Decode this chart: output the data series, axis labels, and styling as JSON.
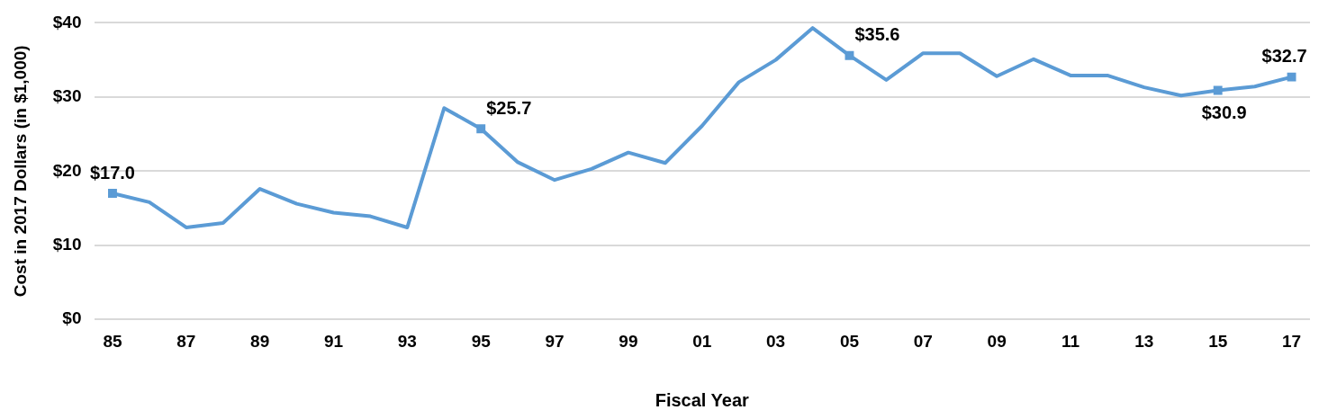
{
  "chart_data": {
    "type": "line",
    "xlabel": "Fiscal Year",
    "ylabel": "Cost in 2017 Dollars (in $1,000)",
    "categories": [
      "85",
      null,
      "87",
      null,
      "89",
      null,
      "91",
      null,
      "93",
      null,
      "95",
      null,
      "97",
      null,
      "99",
      null,
      "01",
      null,
      "03",
      null,
      "05",
      null,
      "07",
      null,
      "09",
      null,
      "11",
      null,
      "13",
      null,
      "15",
      null,
      "17"
    ],
    "series": [
      {
        "color": "#5b9bd5",
        "marker": "none",
        "values": [
          17.0,
          15.8,
          12.4,
          13.0,
          17.6,
          15.6,
          14.4,
          13.9,
          12.4,
          28.5,
          25.7,
          21.2,
          18.8,
          20.3,
          22.5,
          21.1,
          26.1,
          32.0,
          35.0,
          39.3,
          35.6,
          32.3,
          35.9,
          35.9,
          32.8,
          35.1,
          32.9,
          32.9,
          31.3,
          30.2,
          30.9,
          31.4,
          32.7
        ]
      },
      {
        "type": "scatter",
        "color": "#5b9bd5",
        "values": [
          17.0,
          null,
          null,
          null,
          null,
          null,
          null,
          null,
          null,
          null,
          25.7,
          null,
          null,
          null,
          null,
          null,
          null,
          null,
          null,
          null,
          35.6,
          null,
          null,
          null,
          null,
          null,
          null,
          null,
          null,
          null,
          30.9,
          null,
          32.7
        ],
        "value_labels": [
          "$17.0",
          null,
          null,
          null,
          null,
          null,
          null,
          null,
          null,
          null,
          "$25.7",
          null,
          null,
          null,
          null,
          null,
          null,
          null,
          null,
          null,
          "$35.6",
          null,
          null,
          null,
          null,
          null,
          null,
          null,
          null,
          null,
          "$30.9",
          null,
          "$32.7"
        ]
      }
    ],
    "ylim": [
      0,
      40
    ],
    "yticks": [
      {
        "value": 0,
        "label": "$0"
      },
      {
        "value": 10,
        "label": "$10"
      },
      {
        "value": 20,
        "label": "$20"
      },
      {
        "value": 30,
        "label": "$30"
      },
      {
        "value": 40,
        "label": "$40"
      }
    ],
    "grid": "y",
    "legend": false,
    "marker": "square",
    "line_style": "solid"
  }
}
